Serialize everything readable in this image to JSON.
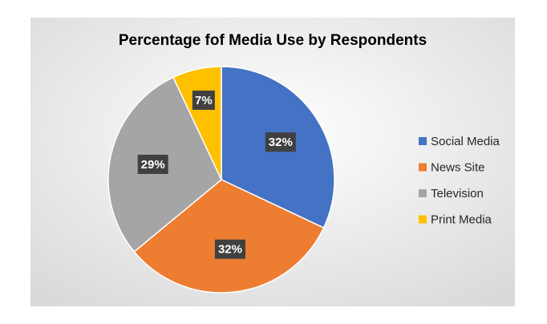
{
  "chart_data": {
    "type": "pie",
    "title": "Percentage fof Media Use by Respondents",
    "categories": [
      "Social Media",
      "News Site",
      "Television",
      "Print Media"
    ],
    "values": [
      32,
      32,
      29,
      7
    ],
    "value_labels": [
      "32%",
      "32%",
      "29%",
      "7%"
    ],
    "colors": [
      "#4472c4",
      "#ed7d31",
      "#a5a5a5",
      "#ffc000"
    ],
    "legend": "right"
  }
}
